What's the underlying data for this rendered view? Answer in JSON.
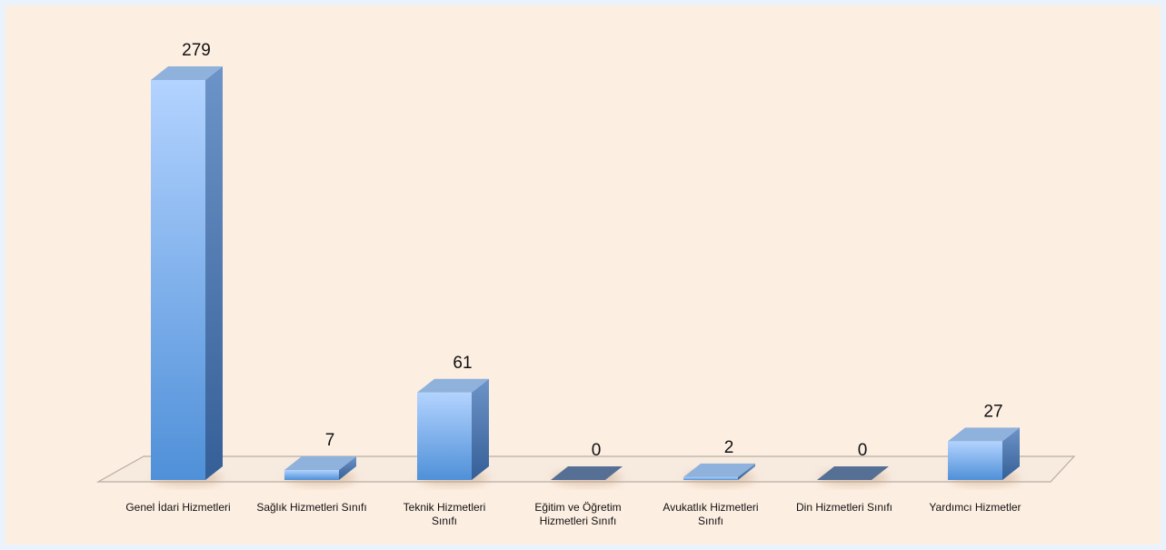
{
  "chart_data": {
    "type": "bar",
    "title": "",
    "xlabel": "",
    "ylabel": "",
    "ylim": [
      0,
      279
    ],
    "grid": false,
    "legend": "none",
    "categories": [
      [
        "Genel İdari Hizmetleri"
      ],
      [
        "Sağlık Hizmetleri Sınıfı"
      ],
      [
        "Teknik Hizmetleri",
        "Sınıfı"
      ],
      [
        "Eğitim ve Öğretim",
        "Hizmetleri Sınıfı"
      ],
      [
        "Avukatlık Hizmetleri",
        "Sınıfı"
      ],
      [
        "Din Hizmetleri Sınıfı"
      ],
      [
        "Yardımcı Hizmetler"
      ]
    ],
    "values": [
      279,
      7,
      61,
      0,
      2,
      0,
      27
    ],
    "data_labels": [
      "279",
      "7",
      "61",
      "0",
      "2",
      "0",
      "27"
    ],
    "colors": {
      "bar_front_top": "#b3d3ff",
      "bar_front_bottom": "#4f90d8",
      "bar_side": "#3d6fab",
      "bar_top": "#8fb2dc",
      "zero_bar": "#566f95",
      "floor": "#f7eadf",
      "floor_edge": "#b9aea3"
    }
  }
}
